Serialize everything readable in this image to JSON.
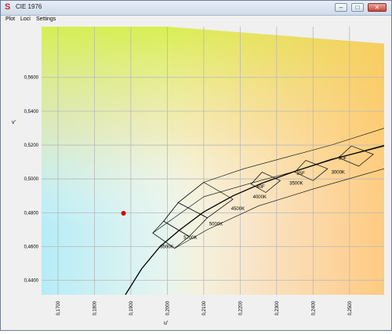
{
  "window": {
    "title": "CIE 1976",
    "app_icon": "cie-app-icon",
    "controls": {
      "minimize": "–",
      "maximize": "□",
      "close": "✕"
    }
  },
  "menu": [
    "Plot",
    "Loci",
    "Settings"
  ],
  "colors": {
    "locus_line": "#000000",
    "grid_line": "#b9b9b9",
    "marker": "#cc0000"
  },
  "chart_data": {
    "type": "scatter",
    "xlabel": "u'",
    "ylabel": "v'",
    "xlim": [
      0.1655,
      0.2595
    ],
    "ylim": [
      0.4315,
      0.59
    ],
    "grid": true,
    "x_ticks": [
      0.17,
      0.18,
      0.19,
      0.2,
      0.21,
      0.22,
      0.23,
      0.24,
      0.25
    ],
    "x_tick_labels": [
      "0,1700",
      "0,1800",
      "0,1900",
      "0,2000",
      "0,2100",
      "0,2200",
      "0,2300",
      "0,2400",
      "0,2500"
    ],
    "y_ticks": [
      0.44,
      0.46,
      0.48,
      0.5,
      0.52,
      0.54,
      0.56
    ],
    "y_tick_labels": [
      "0,4400",
      "0,4600",
      "0,4800",
      "0,5000",
      "0,5200",
      "0,5400",
      "0,5600"
    ],
    "point": {
      "u": 0.188,
      "v": 0.4797
    },
    "planckian_locus": [
      [
        0.1885,
        0.4315
      ],
      [
        0.193,
        0.447
      ],
      [
        0.198,
        0.46
      ],
      [
        0.2035,
        0.47
      ],
      [
        0.21,
        0.4805
      ],
      [
        0.218,
        0.49
      ],
      [
        0.226,
        0.4975
      ],
      [
        0.235,
        0.5045
      ],
      [
        0.245,
        0.5115
      ],
      [
        0.2595,
        0.5195
      ]
    ],
    "cct_labels": [
      {
        "text": "6500K",
        "u": 0.198,
        "v": 0.459
      },
      {
        "text": "5700K",
        "u": 0.2045,
        "v": 0.4645
      },
      {
        "text": "5000K",
        "u": 0.2115,
        "v": 0.4725
      },
      {
        "text": "4500K",
        "u": 0.2175,
        "v": 0.4815
      },
      {
        "text": "4000K",
        "u": 0.2235,
        "v": 0.4885
      },
      {
        "text": "3500K",
        "u": 0.2335,
        "v": 0.4965
      },
      {
        "text": "3000K",
        "u": 0.245,
        "v": 0.503
      }
    ],
    "f_labels": [
      {
        "text": "40F",
        "u": 0.2245,
        "v": 0.4945
      },
      {
        "text": "35F",
        "u": 0.2355,
        "v": 0.5025
      },
      {
        "text": "30F",
        "u": 0.247,
        "v": 0.5115
      }
    ],
    "quadrangles": [
      [
        [
          0.196,
          0.468
        ],
        [
          0.202,
          0.459
        ],
        [
          0.206,
          0.466
        ],
        [
          0.199,
          0.475
        ]
      ],
      [
        [
          0.199,
          0.475
        ],
        [
          0.206,
          0.466
        ],
        [
          0.211,
          0.477
        ],
        [
          0.203,
          0.486
        ]
      ],
      [
        [
          0.203,
          0.486
        ],
        [
          0.211,
          0.477
        ],
        [
          0.218,
          0.488
        ],
        [
          0.21,
          0.498
        ]
      ],
      [
        [
          0.223,
          0.497
        ],
        [
          0.227,
          0.492
        ],
        [
          0.231,
          0.499
        ],
        [
          0.226,
          0.504
        ]
      ],
      [
        [
          0.235,
          0.504
        ],
        [
          0.24,
          0.499
        ],
        [
          0.244,
          0.506
        ],
        [
          0.238,
          0.511
        ]
      ],
      [
        [
          0.247,
          0.5125
        ],
        [
          0.2525,
          0.5075
        ],
        [
          0.2565,
          0.5145
        ],
        [
          0.2505,
          0.5195
        ]
      ]
    ],
    "boundary_inner": [
      [
        0.196,
        0.468
      ],
      [
        0.21,
        0.4895
      ],
      [
        0.223,
        0.4975
      ],
      [
        0.235,
        0.5045
      ],
      [
        0.247,
        0.5125
      ],
      [
        0.2595,
        0.52
      ]
    ],
    "boundary_outer": [
      [
        0.199,
        0.475
      ],
      [
        0.203,
        0.486
      ],
      [
        0.21,
        0.498
      ],
      [
        0.221,
        0.506
      ],
      [
        0.233,
        0.513
      ],
      [
        0.245,
        0.52
      ],
      [
        0.2595,
        0.53
      ]
    ],
    "boundary_lower": [
      [
        0.202,
        0.459
      ],
      [
        0.211,
        0.47
      ],
      [
        0.225,
        0.484
      ],
      [
        0.24,
        0.494
      ],
      [
        0.2595,
        0.506
      ]
    ],
    "spectral_edge": [
      [
        0.2,
        0.59
      ],
      [
        0.2595,
        0.58
      ]
    ]
  }
}
